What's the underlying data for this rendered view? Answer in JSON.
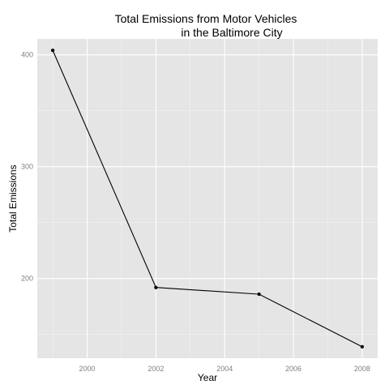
{
  "chart_data": {
    "type": "line",
    "title_lines": [
      "Total Emissions from Motor Vehicles",
      "in the Baltimore City"
    ],
    "xlabel": "Year",
    "ylabel": "Total Emissions",
    "x": [
      1999,
      2002,
      2005,
      2008
    ],
    "y": [
      404,
      192,
      186,
      139
    ],
    "xlim": [
      1998.55,
      2008.45
    ],
    "ylim": [
      128.75,
      414.25
    ],
    "x_ticks": [
      2000,
      2002,
      2004,
      2006,
      2008
    ],
    "y_ticks": [
      200,
      300,
      400
    ],
    "grid": true,
    "legend": "none",
    "colors": {
      "panel": "#e5e5e5",
      "grid_major": "#ffffff",
      "grid_minor": "#f2f2f2",
      "line": "#000000",
      "point": "#000000"
    }
  }
}
